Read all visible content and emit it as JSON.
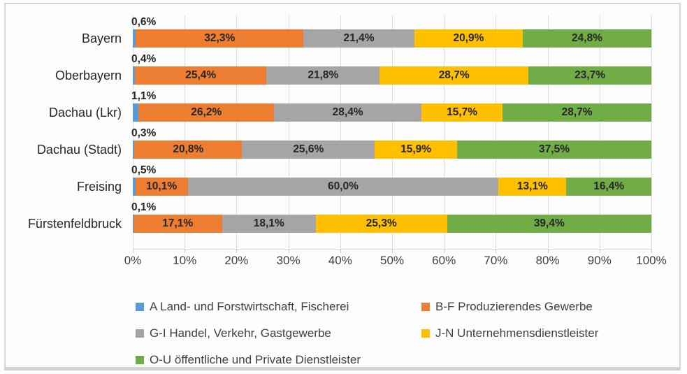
{
  "frame": {
    "background": "#fdfdfd",
    "border_color": "#d6d6d6"
  },
  "chart_data": {
    "type": "bar",
    "orientation": "horizontal-stacked",
    "title": "",
    "categories": [
      "Bayern",
      "Oberbayern",
      "Dachau (Lkr)",
      "Dachau (Stadt)",
      "Freising",
      "Fürstenfeldbruck"
    ],
    "series": [
      {
        "name": "A Land- und Forstwirtschaft, Fischerei",
        "color": "#5B9BD5",
        "values": [
          0.6,
          0.4,
          1.1,
          0.3,
          0.5,
          0.1
        ],
        "labels": [
          "0,6%",
          "0,4%",
          "1,1%",
          "0,3%",
          "0,5%",
          "0,1%"
        ]
      },
      {
        "name": "B-F Produzierendes Gewerbe",
        "color": "#ED7D31",
        "values": [
          32.3,
          25.4,
          26.2,
          20.8,
          10.1,
          17.1
        ],
        "labels": [
          "32,3%",
          "25,4%",
          "26,2%",
          "20,8%",
          "10,1%",
          "17,1%"
        ]
      },
      {
        "name": "G-I Handel, Verkehr, Gastgewerbe",
        "color": "#A5A5A5",
        "values": [
          21.4,
          21.8,
          28.4,
          25.6,
          60.0,
          18.1
        ],
        "labels": [
          "21,4%",
          "21,8%",
          "28,4%",
          "25,6%",
          "60,0%",
          "18,1%"
        ]
      },
      {
        "name": "J-N Unternehmensdienstleister",
        "color": "#FFC000",
        "values": [
          20.9,
          28.7,
          15.7,
          15.9,
          13.1,
          25.3
        ],
        "labels": [
          "20,9%",
          "28,7%",
          "15,7%",
          "15,9%",
          "13,1%",
          "25,3%"
        ]
      },
      {
        "name": "O-U öffentliche und Private Dienstleister",
        "color": "#70AD47",
        "values": [
          24.8,
          23.7,
          28.7,
          37.5,
          16.4,
          39.4
        ],
        "labels": [
          "24,8%",
          "23,7%",
          "28,7%",
          "37,5%",
          "16,4%",
          "39,4%"
        ]
      }
    ],
    "x_ticks": [
      "0%",
      "10%",
      "20%",
      "30%",
      "40%",
      "50%",
      "60%",
      "70%",
      "80%",
      "90%",
      "100%"
    ],
    "xlim": [
      0,
      100
    ],
    "grid": true,
    "legend_position": "bottom",
    "gridline_color": "#dcdcdc",
    "value_label_color": "#262626",
    "axis_label_color": "#404040"
  }
}
